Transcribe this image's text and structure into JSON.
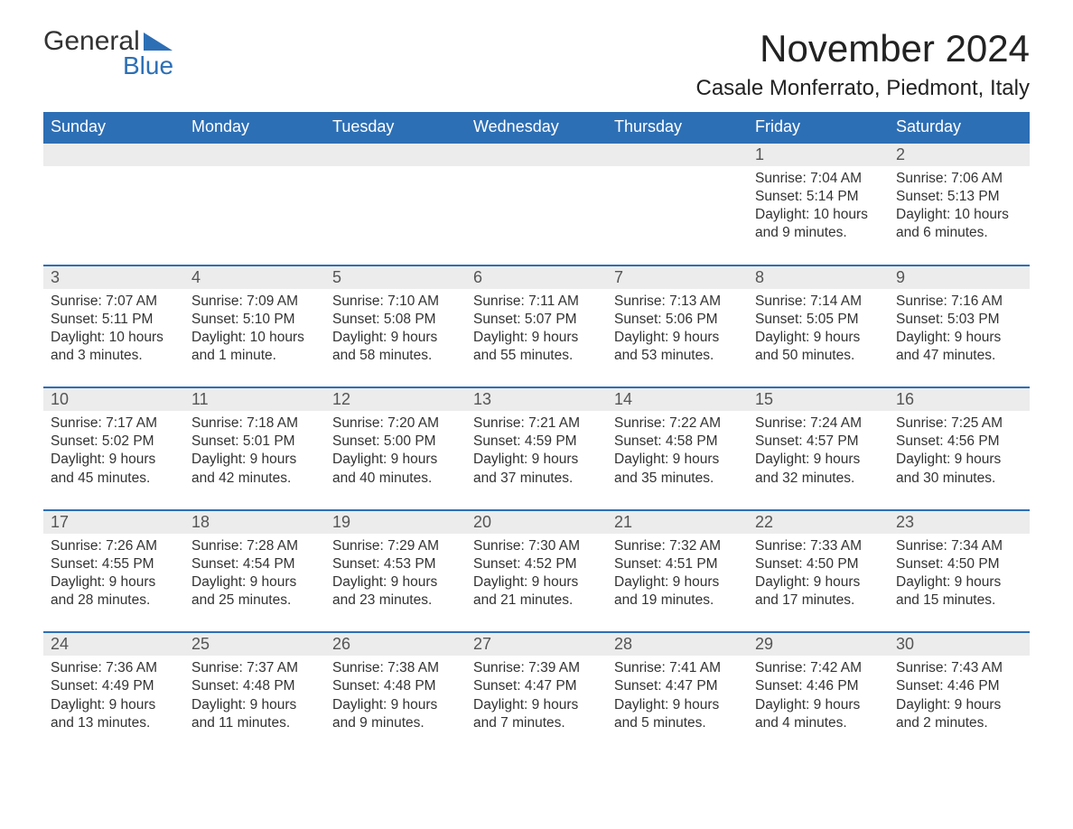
{
  "logo": {
    "part1": "General",
    "part2": "Blue"
  },
  "title": "November 2024",
  "location": "Casale Monferrato, Piedmont, Italy",
  "colors": {
    "header_bg": "#2d6fb5",
    "header_text": "#ffffff",
    "daynum_bg": "#ececec",
    "border_top": "#2d6fb5",
    "body_text": "#333333",
    "page_bg": "#ffffff"
  },
  "weekdays": [
    "Sunday",
    "Monday",
    "Tuesday",
    "Wednesday",
    "Thursday",
    "Friday",
    "Saturday"
  ],
  "weeks": [
    [
      null,
      null,
      null,
      null,
      null,
      {
        "n": "1",
        "sr": "Sunrise: 7:04 AM",
        "ss": "Sunset: 5:14 PM",
        "dl": "Daylight: 10 hours and 9 minutes."
      },
      {
        "n": "2",
        "sr": "Sunrise: 7:06 AM",
        "ss": "Sunset: 5:13 PM",
        "dl": "Daylight: 10 hours and 6 minutes."
      }
    ],
    [
      {
        "n": "3",
        "sr": "Sunrise: 7:07 AM",
        "ss": "Sunset: 5:11 PM",
        "dl": "Daylight: 10 hours and 3 minutes."
      },
      {
        "n": "4",
        "sr": "Sunrise: 7:09 AM",
        "ss": "Sunset: 5:10 PM",
        "dl": "Daylight: 10 hours and 1 minute."
      },
      {
        "n": "5",
        "sr": "Sunrise: 7:10 AM",
        "ss": "Sunset: 5:08 PM",
        "dl": "Daylight: 9 hours and 58 minutes."
      },
      {
        "n": "6",
        "sr": "Sunrise: 7:11 AM",
        "ss": "Sunset: 5:07 PM",
        "dl": "Daylight: 9 hours and 55 minutes."
      },
      {
        "n": "7",
        "sr": "Sunrise: 7:13 AM",
        "ss": "Sunset: 5:06 PM",
        "dl": "Daylight: 9 hours and 53 minutes."
      },
      {
        "n": "8",
        "sr": "Sunrise: 7:14 AM",
        "ss": "Sunset: 5:05 PM",
        "dl": "Daylight: 9 hours and 50 minutes."
      },
      {
        "n": "9",
        "sr": "Sunrise: 7:16 AM",
        "ss": "Sunset: 5:03 PM",
        "dl": "Daylight: 9 hours and 47 minutes."
      }
    ],
    [
      {
        "n": "10",
        "sr": "Sunrise: 7:17 AM",
        "ss": "Sunset: 5:02 PM",
        "dl": "Daylight: 9 hours and 45 minutes."
      },
      {
        "n": "11",
        "sr": "Sunrise: 7:18 AM",
        "ss": "Sunset: 5:01 PM",
        "dl": "Daylight: 9 hours and 42 minutes."
      },
      {
        "n": "12",
        "sr": "Sunrise: 7:20 AM",
        "ss": "Sunset: 5:00 PM",
        "dl": "Daylight: 9 hours and 40 minutes."
      },
      {
        "n": "13",
        "sr": "Sunrise: 7:21 AM",
        "ss": "Sunset: 4:59 PM",
        "dl": "Daylight: 9 hours and 37 minutes."
      },
      {
        "n": "14",
        "sr": "Sunrise: 7:22 AM",
        "ss": "Sunset: 4:58 PM",
        "dl": "Daylight: 9 hours and 35 minutes."
      },
      {
        "n": "15",
        "sr": "Sunrise: 7:24 AM",
        "ss": "Sunset: 4:57 PM",
        "dl": "Daylight: 9 hours and 32 minutes."
      },
      {
        "n": "16",
        "sr": "Sunrise: 7:25 AM",
        "ss": "Sunset: 4:56 PM",
        "dl": "Daylight: 9 hours and 30 minutes."
      }
    ],
    [
      {
        "n": "17",
        "sr": "Sunrise: 7:26 AM",
        "ss": "Sunset: 4:55 PM",
        "dl": "Daylight: 9 hours and 28 minutes."
      },
      {
        "n": "18",
        "sr": "Sunrise: 7:28 AM",
        "ss": "Sunset: 4:54 PM",
        "dl": "Daylight: 9 hours and 25 minutes."
      },
      {
        "n": "19",
        "sr": "Sunrise: 7:29 AM",
        "ss": "Sunset: 4:53 PM",
        "dl": "Daylight: 9 hours and 23 minutes."
      },
      {
        "n": "20",
        "sr": "Sunrise: 7:30 AM",
        "ss": "Sunset: 4:52 PM",
        "dl": "Daylight: 9 hours and 21 minutes."
      },
      {
        "n": "21",
        "sr": "Sunrise: 7:32 AM",
        "ss": "Sunset: 4:51 PM",
        "dl": "Daylight: 9 hours and 19 minutes."
      },
      {
        "n": "22",
        "sr": "Sunrise: 7:33 AM",
        "ss": "Sunset: 4:50 PM",
        "dl": "Daylight: 9 hours and 17 minutes."
      },
      {
        "n": "23",
        "sr": "Sunrise: 7:34 AM",
        "ss": "Sunset: 4:50 PM",
        "dl": "Daylight: 9 hours and 15 minutes."
      }
    ],
    [
      {
        "n": "24",
        "sr": "Sunrise: 7:36 AM",
        "ss": "Sunset: 4:49 PM",
        "dl": "Daylight: 9 hours and 13 minutes."
      },
      {
        "n": "25",
        "sr": "Sunrise: 7:37 AM",
        "ss": "Sunset: 4:48 PM",
        "dl": "Daylight: 9 hours and 11 minutes."
      },
      {
        "n": "26",
        "sr": "Sunrise: 7:38 AM",
        "ss": "Sunset: 4:48 PM",
        "dl": "Daylight: 9 hours and 9 minutes."
      },
      {
        "n": "27",
        "sr": "Sunrise: 7:39 AM",
        "ss": "Sunset: 4:47 PM",
        "dl": "Daylight: 9 hours and 7 minutes."
      },
      {
        "n": "28",
        "sr": "Sunrise: 7:41 AM",
        "ss": "Sunset: 4:47 PM",
        "dl": "Daylight: 9 hours and 5 minutes."
      },
      {
        "n": "29",
        "sr": "Sunrise: 7:42 AM",
        "ss": "Sunset: 4:46 PM",
        "dl": "Daylight: 9 hours and 4 minutes."
      },
      {
        "n": "30",
        "sr": "Sunrise: 7:43 AM",
        "ss": "Sunset: 4:46 PM",
        "dl": "Daylight: 9 hours and 2 minutes."
      }
    ]
  ]
}
